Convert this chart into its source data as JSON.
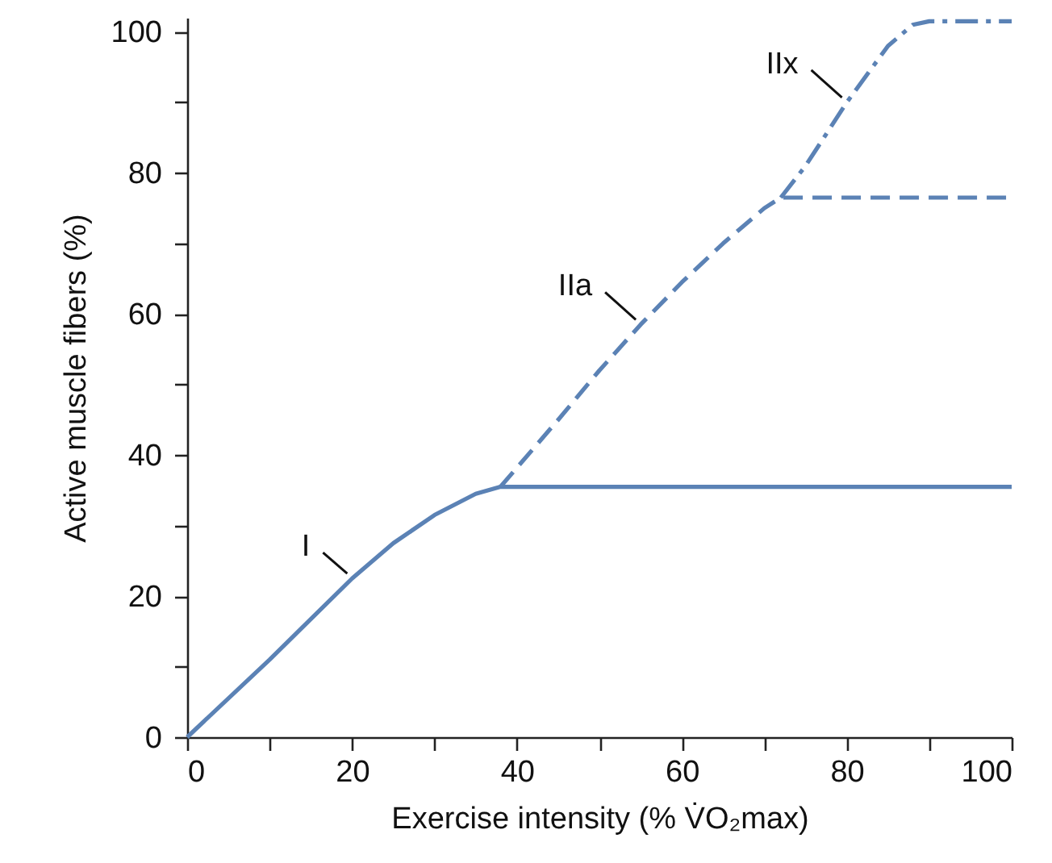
{
  "chart_data": {
    "type": "line",
    "xlabel": "Exercise intensity (% V̇O₂max)",
    "ylabel": "Active muscle fibers (%)",
    "xlim": [
      0,
      100
    ],
    "ylim": [
      0,
      102
    ],
    "xticks": [
      0,
      {
        "value": 10,
        "label": null
      },
      20,
      {
        "value": 30,
        "label": null
      },
      40,
      {
        "value": 50,
        "label": null
      },
      60,
      {
        "value": 70,
        "label": null
      },
      80,
      {
        "value": 90,
        "label": null
      },
      100
    ],
    "yticks": [
      0,
      {
        "value": 10,
        "label": null
      },
      20,
      {
        "value": 30,
        "label": null
      },
      40,
      {
        "value": 50,
        "label": null
      },
      60,
      {
        "value": 70,
        "label": null
      },
      80,
      {
        "value": 90,
        "label": null
      },
      100
    ],
    "grid": false,
    "series": [
      {
        "name": "I",
        "color": "#5b82b5",
        "line_style": "solid",
        "x": [
          0,
          10,
          20,
          25,
          30,
          35,
          38,
          100
        ],
        "values": [
          0,
          11,
          22.5,
          27.5,
          31.5,
          34.5,
          35.5,
          35.5
        ]
      },
      {
        "name": "IIa",
        "color": "#5b82b5",
        "line_style": "dashed",
        "x": [
          38,
          45,
          50,
          55,
          60,
          65,
          70,
          72,
          100
        ],
        "values": [
          35.5,
          45,
          52,
          58.5,
          64.5,
          70,
          75,
          76.5,
          76.5
        ]
      },
      {
        "name": "IIx",
        "color": "#5b82b5",
        "line_style": "dashdot",
        "x": [
          72,
          75,
          80,
          85,
          88,
          90,
          100
        ],
        "values": [
          76.5,
          81,
          90,
          98,
          101,
          101.5,
          101.5
        ]
      }
    ]
  }
}
